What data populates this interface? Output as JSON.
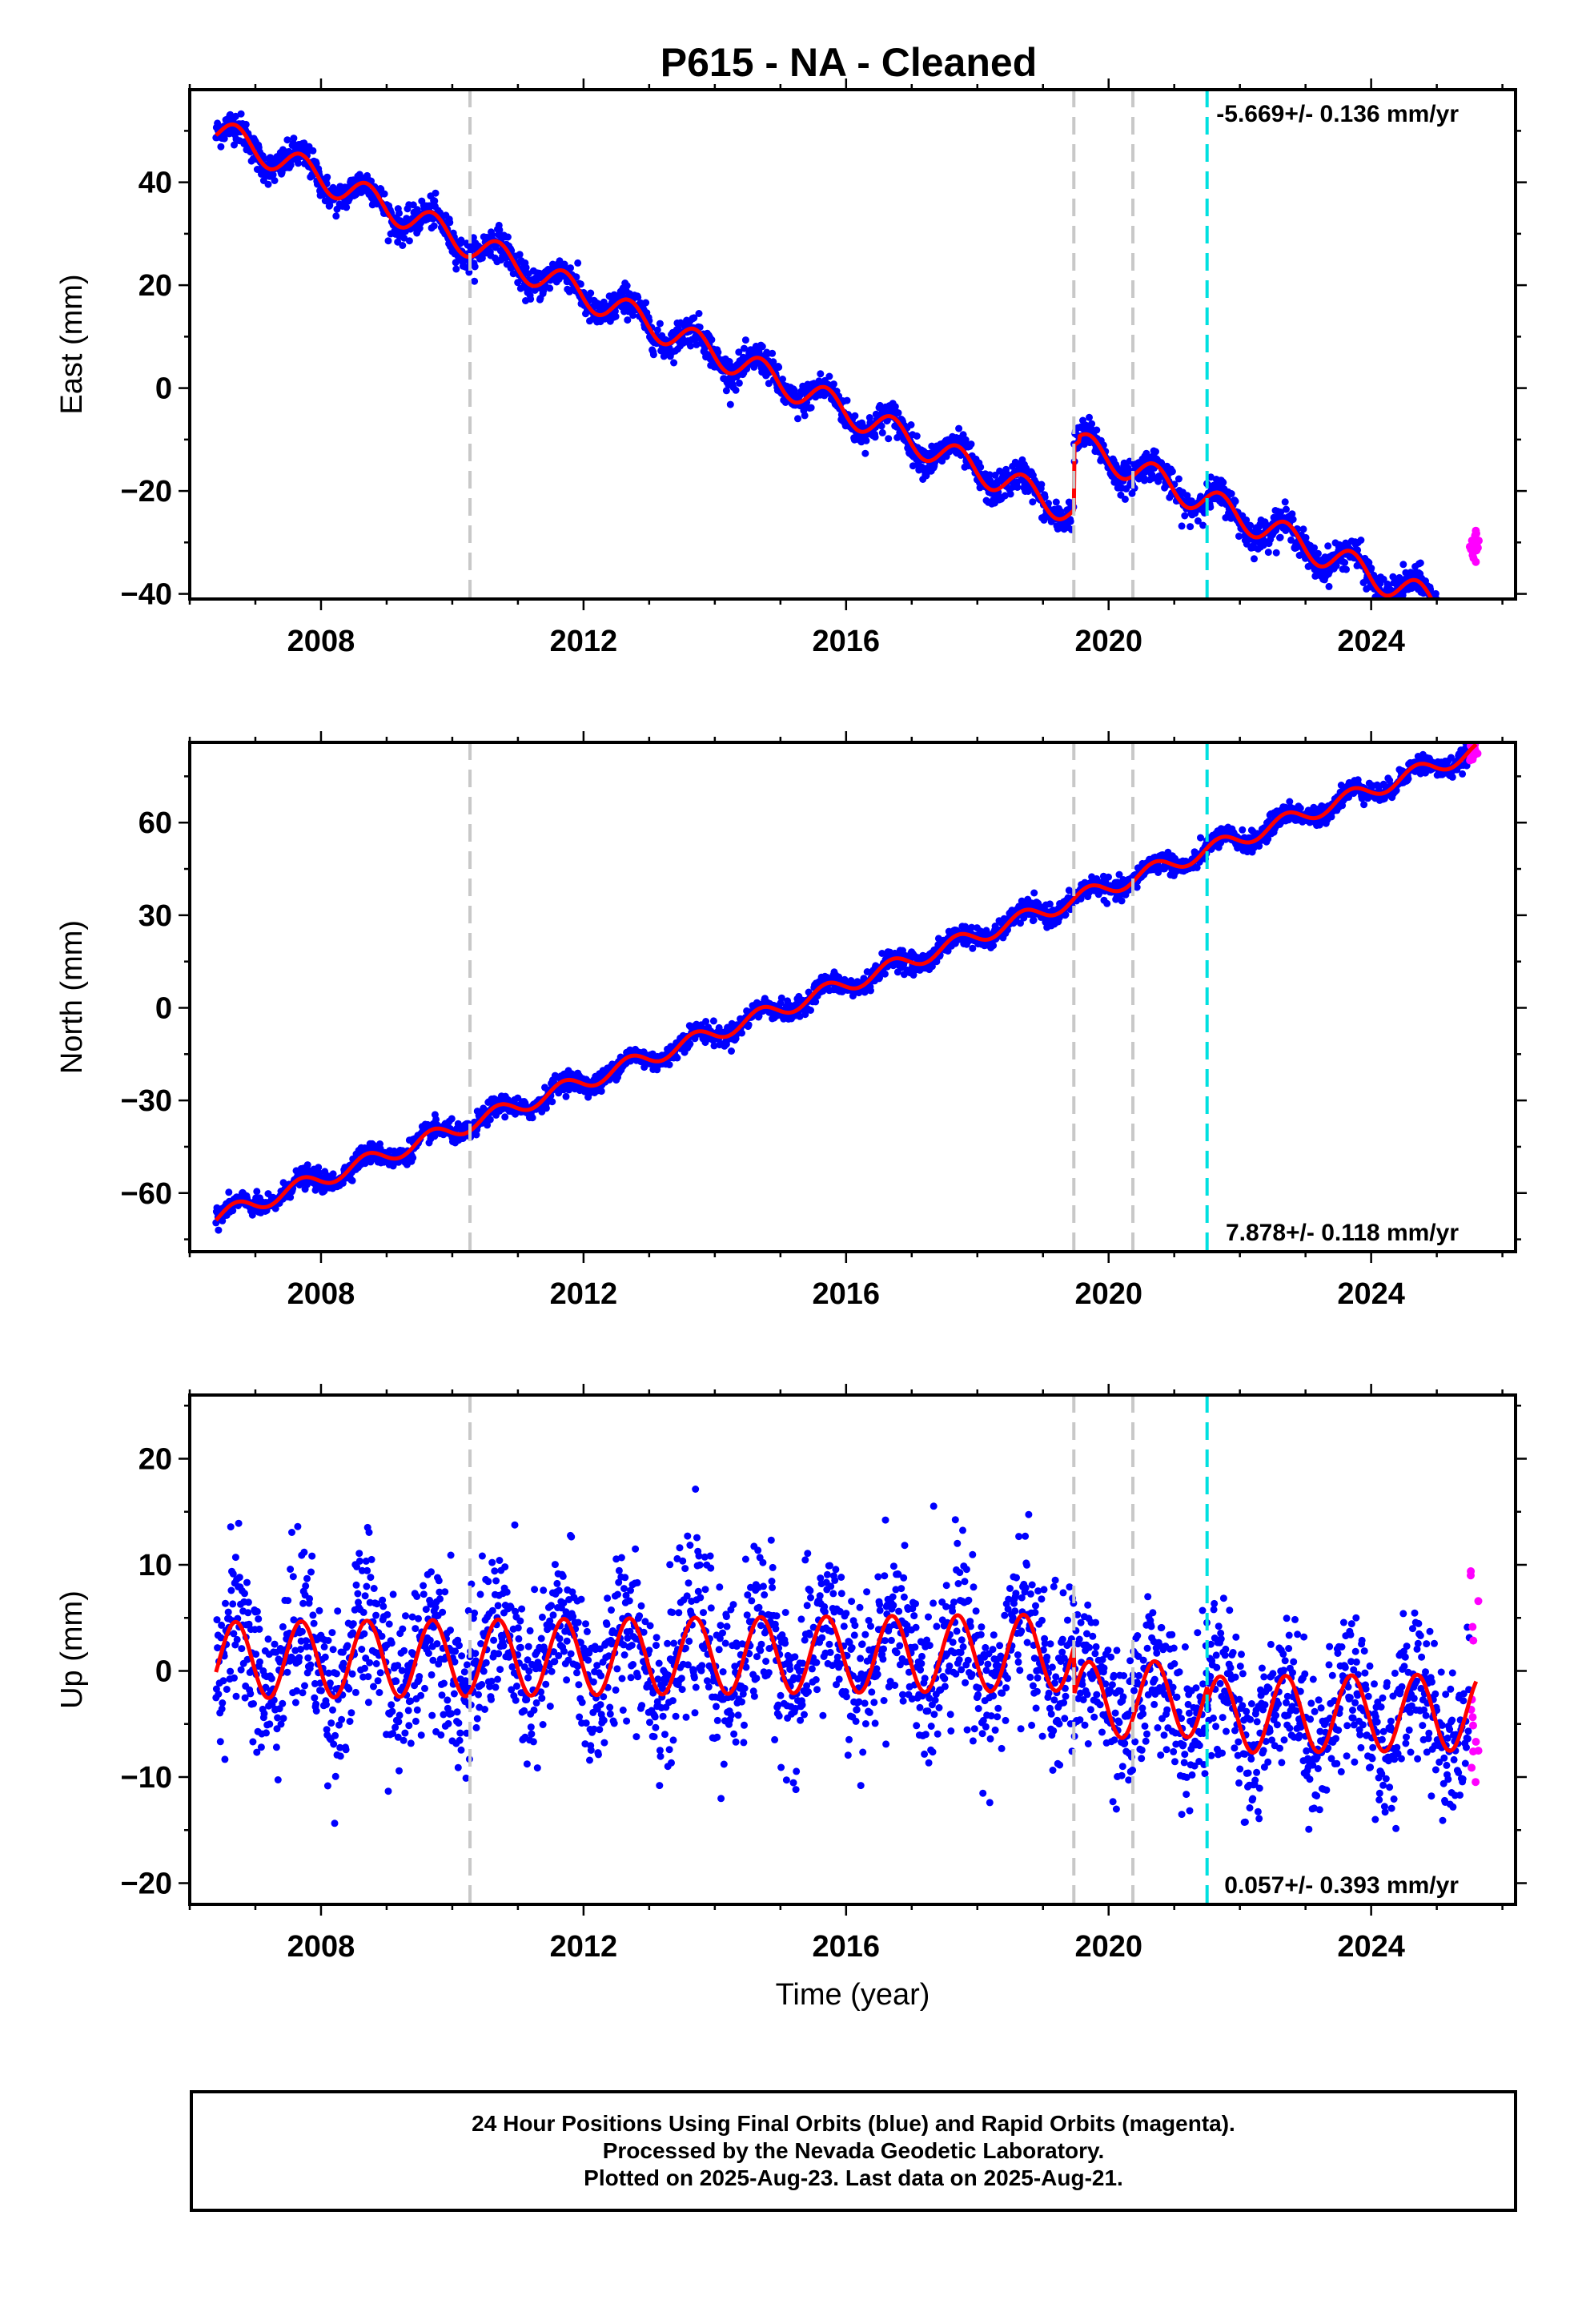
{
  "title": "P615  - NA - Cleaned",
  "footer": {
    "line1": "24 Hour Positions Using Final Orbits (blue) and Rapid Orbits (magenta).",
    "line2": "Processed by the Nevada Geodetic Laboratory.",
    "line3": "Plotted on 2025-Aug-23. Last data on 2025-Aug-21."
  },
  "colors": {
    "final_orbits": "#0000ff",
    "rapid_orbits": "#ff00ff",
    "model": "#ff0000",
    "equipment_change": "#c8c8c8",
    "earthquake": "#00e0e0"
  },
  "chart_data": [
    {
      "type": "scatter",
      "panel": "east",
      "ylabel": "East (mm)",
      "xlabel": "",
      "xlim": [
        2006.0,
        2026.2
      ],
      "ylim": [
        -41,
        58
      ],
      "xticks": [
        2008,
        2012,
        2016,
        2020,
        2024
      ],
      "yticks": [
        -40,
        -20,
        0,
        20,
        40
      ],
      "rate_label": "-5.669+/- 0.136 mm/yr",
      "rate_label_position": "top-right",
      "grid": false,
      "vlines_gray": [
        2010.27,
        2019.47,
        2020.37
      ],
      "vlines_cyan": [
        2021.5
      ],
      "series": [
        {
          "name": "Final Orbits (blue)",
          "model": {
            "t0": 2006.4,
            "t_end": 2025.5,
            "intercept": 50.0,
            "rate": -5.669,
            "amplitude": 2.8,
            "scatter": 1.5,
            "offsets": [
              {
                "t": 2019.47,
                "dy": 12.5
              },
              {
                "t": 2019.55,
                "dy": 1.0
              }
            ]
          }
        },
        {
          "name": "Rapid Orbits (magenta)",
          "x_range": [
            2025.5,
            2025.64
          ],
          "y_range": [
            -35,
            -27
          ]
        },
        {
          "name": "Model",
          "type": "line"
        }
      ]
    },
    {
      "type": "scatter",
      "panel": "north",
      "ylabel": "North (mm)",
      "xlabel": "",
      "xlim": [
        2006.0,
        2026.2
      ],
      "ylim": [
        -79,
        86
      ],
      "xticks": [
        2008,
        2012,
        2016,
        2020,
        2024
      ],
      "yticks": [
        -60,
        -30,
        0,
        30,
        60
      ],
      "rate_label": "7.878+/- 0.118 mm/yr",
      "rate_label_position": "bottom-right",
      "grid": false,
      "vlines_gray": [
        2010.27,
        2019.47,
        2020.37
      ],
      "vlines_cyan": [
        2021.5
      ],
      "series": [
        {
          "name": "Final Orbits (blue)",
          "model": {
            "t0": 2006.4,
            "t_end": 2025.5,
            "intercept": -68.0,
            "rate": 7.878,
            "amplitude": 2.6,
            "scatter": 1.6,
            "offsets": []
          }
        },
        {
          "name": "Rapid Orbits (magenta)",
          "x_range": [
            2025.5,
            2025.64
          ],
          "y_range": [
            80,
            86
          ]
        },
        {
          "name": "Model",
          "type": "line"
        }
      ]
    },
    {
      "type": "scatter",
      "panel": "up",
      "ylabel": "Up (mm)",
      "xlabel": "Time (year)",
      "xlim": [
        2006.0,
        2026.2
      ],
      "ylim": [
        -22,
        26
      ],
      "xticks": [
        2008,
        2012,
        2016,
        2020,
        2024
      ],
      "yticks": [
        -20,
        -10,
        0,
        10,
        20
      ],
      "rate_label": "0.057+/- 0.393 mm/yr",
      "rate_label_position": "bottom-right",
      "grid": false,
      "vlines_gray": [
        2010.27,
        2019.47,
        2020.37
      ],
      "vlines_cyan": [
        2021.5
      ],
      "series": [
        {
          "name": "Final Orbits (blue)",
          "model": {
            "t0": 2006.4,
            "t_end": 2025.5,
            "intercept": 1.0,
            "rate": 0.057,
            "amplitude": 3.6,
            "scatter": 3.8,
            "offsets": [
              {
                "t": 2019.47,
                "dy": -4.5
              },
              {
                "t": 2021.5,
                "dy": -1.5
              }
            ]
          }
        },
        {
          "name": "Rapid Orbits (magenta)",
          "x_range": [
            2025.5,
            2025.64
          ],
          "y_range": [
            -12,
            11
          ]
        },
        {
          "name": "Model",
          "type": "line"
        }
      ]
    }
  ]
}
